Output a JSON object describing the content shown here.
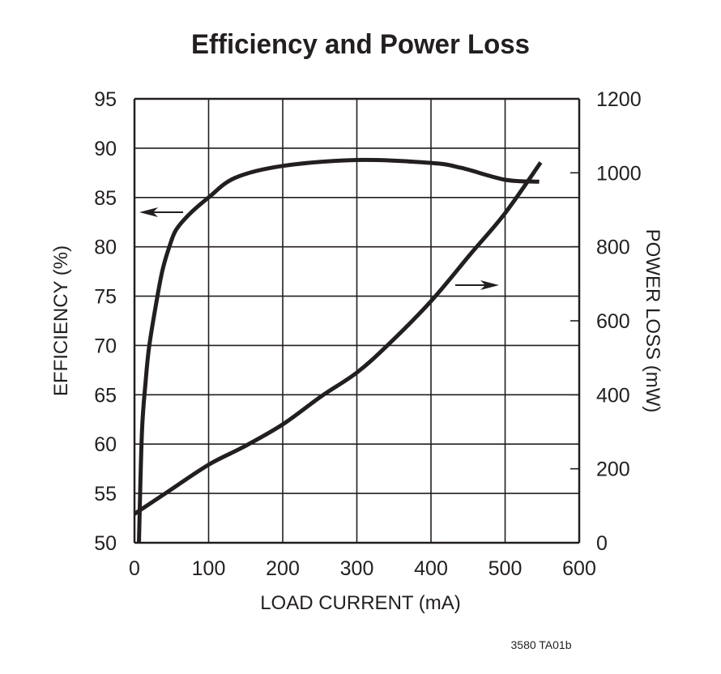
{
  "chart_data": {
    "type": "line",
    "title": "Efficiency and Power Loss",
    "xlabel": "LOAD CURRENT (mA)",
    "ylabel": "EFFICIENCY (%)",
    "y2label": "POWER LOSS (mW)",
    "xlim": [
      0,
      600
    ],
    "ylim": [
      50,
      95
    ],
    "y2lim": [
      0,
      1200
    ],
    "xticks": [
      0,
      100,
      200,
      300,
      400,
      500,
      600
    ],
    "yticks": [
      50,
      55,
      60,
      65,
      70,
      75,
      80,
      85,
      90,
      95
    ],
    "y2ticks": [
      0,
      200,
      400,
      600,
      800,
      1000,
      1200
    ],
    "grid": true,
    "series": [
      {
        "axis": "left",
        "arrow": "left",
        "x": [
          6,
          10,
          15,
          20,
          31,
          38,
          47,
          56,
          74,
          100,
          136,
          200,
          300,
          400,
          441,
          500,
          546
        ],
        "y": [
          50,
          61.1,
          66.3,
          70,
          75,
          77.7,
          80,
          81.7,
          83.3,
          85,
          87,
          88.2,
          88.8,
          88.5,
          88.0,
          86.8,
          86.6
        ]
      },
      {
        "axis": "right",
        "arrow": "right",
        "x": [
          0,
          42,
          100,
          147,
          200,
          252,
          300,
          343,
          400,
          454,
          500,
          548
        ],
        "y": [
          78,
          134,
          211,
          259,
          320,
          396,
          460,
          537,
          653,
          782,
          891,
          1028
        ]
      }
    ],
    "footnote": "3580 TA01b",
    "line_color": "#231f20"
  }
}
